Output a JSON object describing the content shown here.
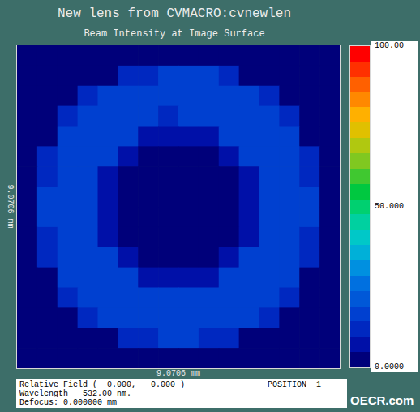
{
  "chart_data": {
    "type": "heatmap",
    "title": "New lens from CVMACRO:cvnewlen",
    "subtitle": "Beam Intensity at Image Surface",
    "x_label": "9.0706 mm",
    "y_label": "9.0706 mm",
    "tick_labels": false,
    "cells": [
      [
        0,
        0,
        0,
        0,
        0,
        0,
        0,
        0,
        0,
        0,
        0,
        0,
        0,
        0,
        0,
        0
      ],
      [
        0,
        0,
        0,
        0,
        4,
        10,
        14,
        16,
        17,
        15,
        10,
        4,
        0,
        0,
        0,
        0
      ],
      [
        0,
        0,
        0,
        10,
        16,
        18,
        15,
        17,
        16,
        18,
        15,
        17,
        10,
        0,
        0,
        0
      ],
      [
        0,
        0,
        10,
        17,
        15,
        18,
        16,
        14,
        15,
        17,
        16,
        18,
        15,
        10,
        0,
        0
      ],
      [
        0,
        4,
        16,
        18,
        15,
        16,
        9,
        9,
        9,
        9,
        17,
        15,
        18,
        16,
        4,
        0
      ],
      [
        0,
        10,
        17,
        15,
        16,
        9,
        2,
        2,
        2,
        2,
        9,
        16,
        15,
        17,
        10,
        0
      ],
      [
        0,
        14,
        16,
        18,
        9,
        2,
        2,
        2,
        2,
        2,
        2,
        9,
        17,
        15,
        14,
        0
      ],
      [
        0,
        16,
        15,
        17,
        9,
        2,
        2,
        2,
        2,
        2,
        2,
        9,
        16,
        18,
        16,
        0
      ],
      [
        0,
        17,
        16,
        15,
        9,
        2,
        2,
        2,
        2,
        2,
        2,
        9,
        18,
        16,
        15,
        0
      ],
      [
        0,
        14,
        15,
        17,
        9,
        2,
        2,
        2,
        2,
        2,
        2,
        9,
        16,
        17,
        14,
        0
      ],
      [
        0,
        10,
        16,
        18,
        16,
        9,
        2,
        2,
        2,
        2,
        9,
        15,
        17,
        16,
        10,
        0
      ],
      [
        0,
        4,
        17,
        16,
        15,
        18,
        9,
        9,
        9,
        9,
        16,
        18,
        15,
        17,
        4,
        0
      ],
      [
        0,
        0,
        10,
        15,
        18,
        16,
        17,
        15,
        16,
        18,
        15,
        17,
        16,
        10,
        0,
        0
      ],
      [
        0,
        0,
        0,
        10,
        17,
        15,
        16,
        18,
        17,
        15,
        16,
        18,
        10,
        0,
        0,
        0
      ],
      [
        0,
        0,
        0,
        0,
        4,
        10,
        14,
        16,
        16,
        14,
        10,
        4,
        0,
        0,
        0,
        0
      ],
      [
        0,
        0,
        0,
        0,
        0,
        0,
        0,
        0,
        0,
        0,
        0,
        0,
        0,
        0,
        0,
        0
      ]
    ],
    "colorbar": {
      "range": [
        0,
        100
      ],
      "ticks": [
        {
          "value": 0,
          "label": "0.0000"
        },
        {
          "value": 50,
          "label": "50.000"
        },
        {
          "value": 100,
          "label": "100.00"
        }
      ],
      "colors": [
        "#00007a",
        "#0010a8",
        "#0028c0",
        "#0040d0",
        "#0058d8",
        "#0070e0",
        "#0090e0",
        "#00b0d8",
        "#00c8c8",
        "#00d0a0",
        "#00d070",
        "#00c840",
        "#40c830",
        "#80c820",
        "#b0c810",
        "#e0c000",
        "#ffb000",
        "#ff8800",
        "#ff6000",
        "#ff3000",
        "#ff0000"
      ]
    },
    "annotations": [
      "Relative Field (  0.000,   0.000 )",
      "Wavelength   532.00 nm.",
      "Defocus: 0.000000 mm",
      "POSITION  1",
      "OECR.com"
    ]
  }
}
